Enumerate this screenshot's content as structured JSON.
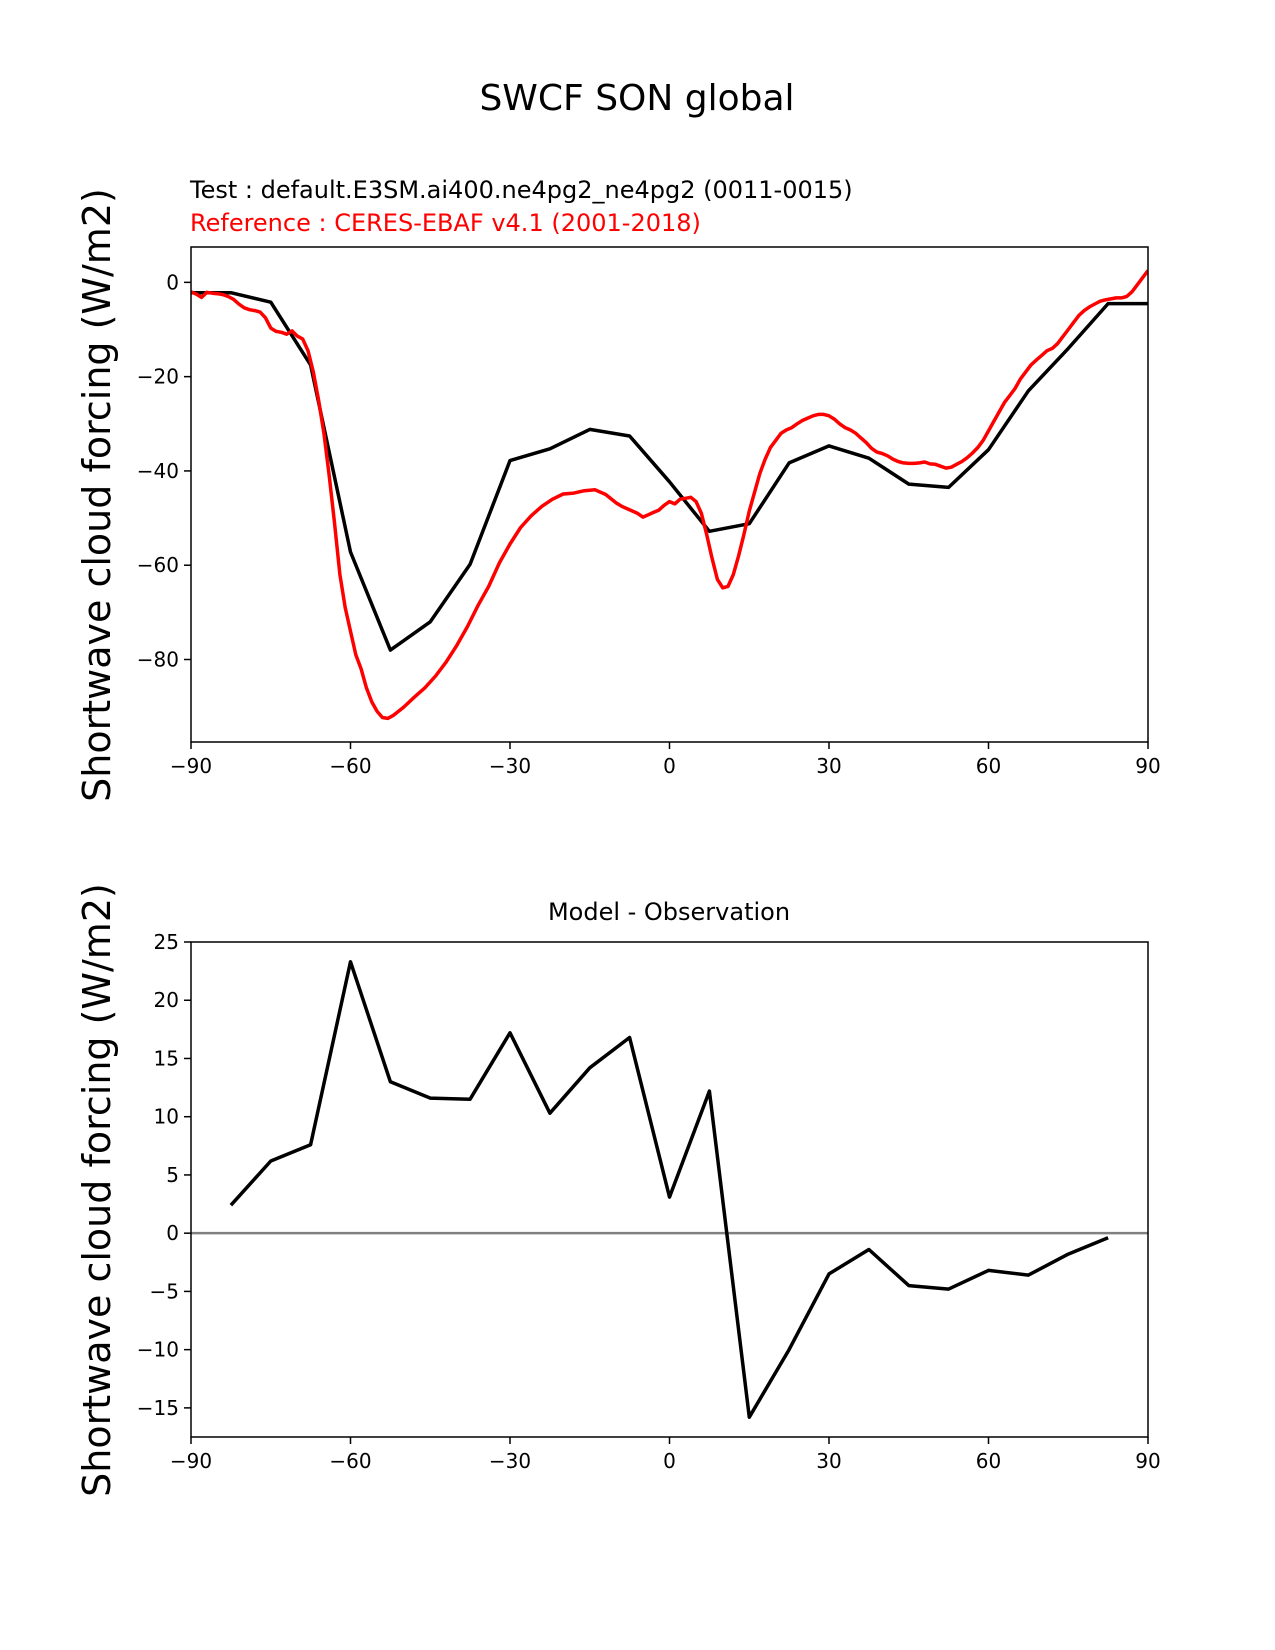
{
  "figure_title": "SWCF SON global",
  "colors": {
    "test": "#000000",
    "reference": "#ff0000",
    "zero_line": "#808080"
  },
  "chart_data": [
    {
      "type": "line",
      "subtitle_test": "Test : default.E3SM.ai400.ne4pg2_ne4pg2 (0011-0015)",
      "subtitle_reference": "Reference : CERES-EBAF v4.1 (2001-2018)",
      "ylabel": "Shortwave cloud forcing (W/m2)",
      "xlim": [
        -90,
        90
      ],
      "ylim": [
        -97.5,
        7.5
      ],
      "xticks": [
        -90,
        -60,
        -30,
        0,
        30,
        60,
        90
      ],
      "yticks": [
        0,
        -20,
        -40,
        -60,
        -80
      ],
      "series": [
        {
          "key": "test",
          "x": [
            -90,
            -82.5,
            -75,
            -67.5,
            -60,
            -52.5,
            -45,
            -37.5,
            -30,
            -22.5,
            -15,
            -7.5,
            0,
            7.5,
            15,
            22.5,
            30,
            37.5,
            45,
            52.5,
            60,
            67.5,
            75,
            82.5,
            90
          ],
          "y": [
            -2.2,
            -2.2,
            -4.2,
            -17.5,
            -57.2,
            -78.0,
            -72.0,
            -59.8,
            -37.8,
            -35.3,
            -31.2,
            -32.6,
            -42.3,
            -52.8,
            -51.2,
            -38.3,
            -34.7,
            -37.3,
            -42.8,
            -43.5,
            -35.5,
            -23.0,
            -14.0,
            -4.5,
            -4.5
          ]
        },
        {
          "key": "reference",
          "x": [
            -90,
            -89,
            -88,
            -87,
            -86,
            -85,
            -84,
            -83,
            -82,
            -81,
            -80,
            -79,
            -78,
            -77,
            -76,
            -75,
            -74,
            -73,
            -72,
            -71,
            -70,
            -69,
            -68,
            -67,
            -66,
            -65,
            -64,
            -63,
            -62,
            -61,
            -60,
            -59,
            -58,
            -57,
            -56,
            -55,
            -54,
            -53,
            -52,
            -51,
            -50,
            -48,
            -46,
            -44,
            -42,
            -40,
            -38,
            -36,
            -34,
            -32,
            -30,
            -28,
            -26,
            -24,
            -22,
            -20,
            -18,
            -16,
            -14,
            -12,
            -10,
            -9,
            -8,
            -7,
            -6,
            -5,
            -4,
            -3,
            -2,
            -1,
            0,
            1,
            2,
            3,
            4,
            5,
            6,
            7,
            8,
            9,
            10,
            11,
            12,
            13,
            14,
            15,
            16,
            17,
            18,
            19,
            20,
            21,
            22,
            23,
            24,
            25,
            26,
            27,
            28,
            29,
            30,
            31,
            32,
            33,
            34,
            35,
            36,
            37,
            38,
            39,
            40,
            41,
            42,
            43,
            44,
            45,
            46,
            47,
            48,
            49,
            50,
            51,
            52,
            53,
            54,
            55,
            56,
            57,
            58,
            59,
            60,
            61,
            62,
            63,
            64,
            65,
            66,
            67,
            68,
            69,
            70,
            71,
            72,
            73,
            74,
            75,
            76,
            77,
            78,
            79,
            80,
            81,
            82,
            83,
            84,
            85,
            86,
            87,
            88,
            89,
            90
          ],
          "y": [
            -2.0,
            -2.5,
            -3.2,
            -2.1,
            -2.3,
            -2.4,
            -2.6,
            -3.0,
            -3.6,
            -4.6,
            -5.4,
            -5.8,
            -6.0,
            -6.3,
            -7.5,
            -9.7,
            -10.4,
            -10.6,
            -11.0,
            -10.3,
            -11.4,
            -12.0,
            -14.5,
            -19.0,
            -25.0,
            -32.0,
            -41.0,
            -51.0,
            -62.0,
            -69.0,
            -74.0,
            -79.0,
            -82.0,
            -86.0,
            -89.0,
            -91.0,
            -92.3,
            -92.5,
            -91.9,
            -91.0,
            -90.1,
            -88.0,
            -86.0,
            -83.5,
            -80.5,
            -77.0,
            -73.0,
            -68.5,
            -64.5,
            -59.5,
            -55.5,
            -52.0,
            -49.5,
            -47.5,
            -46.0,
            -44.9,
            -44.7,
            -44.2,
            -44.0,
            -45.0,
            -46.8,
            -47.5,
            -48.0,
            -48.5,
            -49.0,
            -49.8,
            -49.3,
            -48.8,
            -48.3,
            -47.3,
            -46.5,
            -47.0,
            -46.0,
            -45.8,
            -45.6,
            -46.5,
            -49.0,
            -53.5,
            -58.5,
            -63.0,
            -64.8,
            -64.5,
            -62.0,
            -58.0,
            -53.5,
            -48.5,
            -44.5,
            -40.5,
            -37.5,
            -35.0,
            -33.5,
            -32.0,
            -31.3,
            -30.8,
            -30.0,
            -29.3,
            -28.8,
            -28.3,
            -28.0,
            -28.0,
            -28.3,
            -29.0,
            -30.0,
            -30.8,
            -31.3,
            -32.0,
            -33.0,
            -34.0,
            -35.2,
            -36.0,
            -36.3,
            -36.8,
            -37.5,
            -38.0,
            -38.3,
            -38.4,
            -38.4,
            -38.3,
            -38.1,
            -38.5,
            -38.6,
            -39.0,
            -39.4,
            -39.2,
            -38.6,
            -38.0,
            -37.2,
            -36.2,
            -35.0,
            -33.5,
            -31.5,
            -29.5,
            -27.5,
            -25.5,
            -24.0,
            -22.5,
            -20.5,
            -19.0,
            -17.5,
            -16.5,
            -15.5,
            -14.5,
            -14.0,
            -13.0,
            -11.5,
            -10.0,
            -8.5,
            -7.0,
            -6.0,
            -5.2,
            -4.6,
            -4.0,
            -3.7,
            -3.5,
            -3.3,
            -3.3,
            -3.0,
            -2.0,
            -0.5,
            1.0,
            2.5
          ]
        }
      ]
    },
    {
      "type": "line",
      "title": "Model - Observation",
      "ylabel": "Shortwave cloud forcing (W/m2)",
      "xlim": [
        -90,
        90
      ],
      "ylim": [
        -17.5,
        25
      ],
      "xticks": [
        -90,
        -60,
        -30,
        0,
        30,
        60,
        90
      ],
      "yticks": [
        25,
        20,
        15,
        10,
        5,
        0,
        -5,
        -10,
        -15
      ],
      "zero_line": 0,
      "series": [
        {
          "key": "diff",
          "x": [
            -82.5,
            -75,
            -67.5,
            -60,
            -52.5,
            -45,
            -37.5,
            -30,
            -22.5,
            -15,
            -7.5,
            0,
            7.5,
            15,
            22.5,
            30,
            37.5,
            45,
            52.5,
            60,
            67.5,
            75,
            82.5
          ],
          "y": [
            2.4,
            6.2,
            7.6,
            23.3,
            13.0,
            11.6,
            11.5,
            17.2,
            10.3,
            14.2,
            16.8,
            3.1,
            12.2,
            -15.8,
            -10.0,
            -3.5,
            -1.4,
            -4.5,
            -4.8,
            -3.2,
            -3.6,
            -1.8,
            -0.4
          ]
        }
      ]
    }
  ]
}
